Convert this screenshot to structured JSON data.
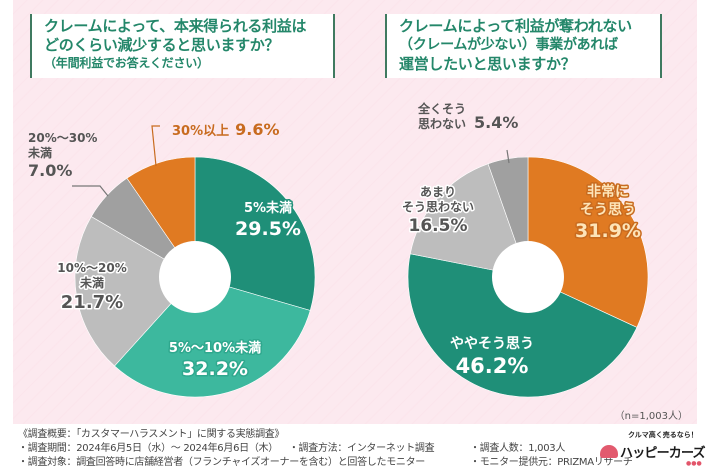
{
  "chart_data": [
    {
      "type": "pie",
      "title": "クレームによって、本来得られる利益はどのくらい減少すると思いますか？",
      "subtitle": "（年間利益でお答えください）",
      "categories": [
        "5%未満",
        "5%〜10%未満",
        "10%〜20%未満",
        "20%〜30%未満",
        "30%以上"
      ],
      "values": [
        29.5,
        32.2,
        21.7,
        7.0,
        9.6
      ],
      "value_labels": [
        "29.5%",
        "32.2%",
        "21.7%",
        "7.0%",
        "9.6%"
      ],
      "label_lines": [
        [
          "5%未満"
        ],
        [
          "5%〜10%未満"
        ],
        [
          "10%〜20%",
          "未満"
        ],
        [
          "20%〜30%",
          "未満"
        ],
        [
          "30%以上"
        ]
      ],
      "colors": [
        "#1f8f78",
        "#3db89e",
        "#bdbdbd",
        "#a0a0a0",
        "#e07a22"
      ],
      "donut": true
    },
    {
      "type": "pie",
      "title": "クレームによって利益が奪われない（クレームが少ない）事業があれば運営したいと思いますか？",
      "categories": [
        "非常にそう思う",
        "ややそう思う",
        "あまりそう思わない",
        "全くそう思わない"
      ],
      "values": [
        31.9,
        46.2,
        16.5,
        5.4
      ],
      "value_labels": [
        "31.9%",
        "46.2%",
        "16.5%",
        "5.4%"
      ],
      "label_lines": [
        [
          "非常に",
          "そう思う"
        ],
        [
          "ややそう思う"
        ],
        [
          "あまり",
          "そう思わない"
        ],
        [
          "全くそう",
          "思わない"
        ]
      ],
      "colors": [
        "#e07a22",
        "#1f8f78",
        "#bdbdbd",
        "#a0a0a0"
      ],
      "donut": true
    }
  ],
  "questions": {
    "q1": {
      "line1": "クレームによって、本来得られる利益は",
      "line2": "どのくらい減少すると思いますか？",
      "note": "（年間利益でお答えください）"
    },
    "q2": {
      "line1": "クレームによって利益が奪われない",
      "line2": "（クレームが少ない）事業があれば",
      "line3": "運営したいと思いますか？"
    }
  },
  "sample_note": "（n=1,003人）",
  "footer": {
    "summary": "《調査概要：「カスタマーハラスメント」に関する実態調査》",
    "period": "・調査期間：2024年6月5日（水）〜 2024年6月6日（木）",
    "method": "・調査方法：インターネット調査",
    "count": "・調査人数：1,003人",
    "target": "・調査対象：調査回答時に店舗経営者（フランチャイズオーナーを含む）と回答したモニター",
    "provider": "・モニター提供元：PRIZMAリサーチ"
  },
  "logo": {
    "tagline": "クルマ高く売るなら！",
    "name": "ハッピーカーズ",
    "dots": "●●●"
  }
}
